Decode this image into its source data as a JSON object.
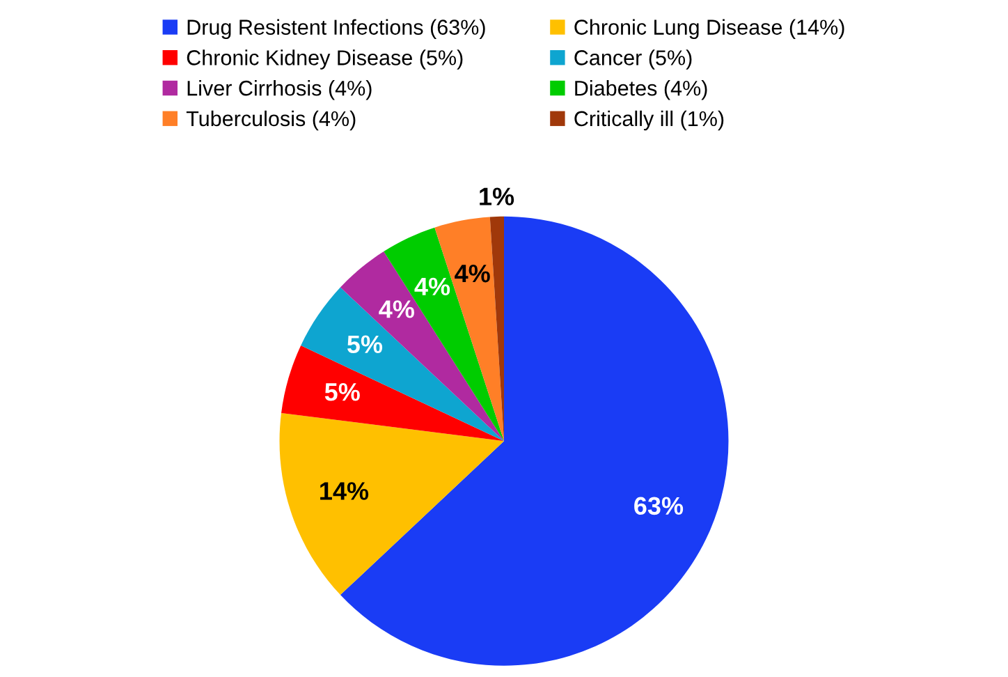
{
  "chart_data": {
    "type": "pie",
    "categories": [
      "Drug Resistent Infections (63%)",
      "Chronic Lung Disease (14%)",
      "Chronic Kidney Disease (5%)",
      "Cancer (5%)",
      "Liver Cirrhosis (4%)",
      "Diabetes (4%)",
      "Tuberculosis (4%)",
      "Critically ill (1%)"
    ],
    "values": [
      63,
      14,
      5,
      5,
      4,
      4,
      4,
      1
    ],
    "value_labels": [
      "63%",
      "14%",
      "5%",
      "5%",
      "4%",
      "4%",
      "4%",
      "1%"
    ],
    "colors": [
      "#1a3cf5",
      "#ffc000",
      "#ff0000",
      "#0ea5d0",
      "#b02aa0",
      "#00cc00",
      "#ff7f27",
      "#a0380a"
    ],
    "legend": "top"
  }
}
